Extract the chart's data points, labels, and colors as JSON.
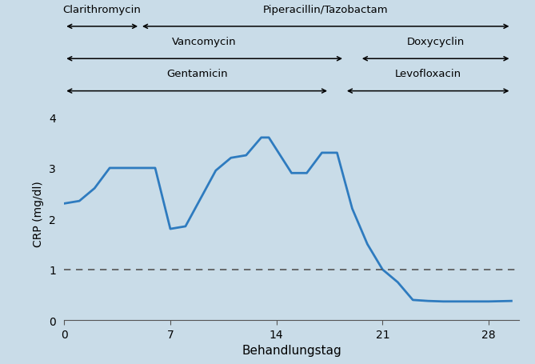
{
  "background_color": "#c9dce8",
  "line_color": "#2e7bbf",
  "line_width": 2.0,
  "x": [
    0,
    1,
    2,
    3,
    5,
    6,
    7,
    8,
    10,
    11,
    12,
    13,
    13.5,
    15,
    16,
    17,
    18,
    19,
    20,
    21,
    22,
    23,
    24,
    25,
    26,
    27,
    28,
    29.5
  ],
  "y": [
    2.3,
    2.35,
    2.6,
    3.0,
    3.0,
    3.0,
    1.8,
    1.85,
    2.95,
    3.2,
    3.25,
    3.6,
    3.6,
    2.9,
    2.9,
    3.3,
    3.3,
    2.2,
    1.5,
    1.0,
    0.75,
    0.4,
    0.38,
    0.37,
    0.37,
    0.37,
    0.37,
    0.38
  ],
  "xlim": [
    0,
    30
  ],
  "ylim": [
    0,
    4.2
  ],
  "xticks": [
    0,
    7,
    14,
    21,
    28
  ],
  "yticks": [
    0,
    1,
    2,
    3,
    4
  ],
  "xlabel": "Behandlungstag",
  "ylabel": "CRP (mg/dl)",
  "dashed_line_y": 1.0,
  "dashed_color": "#555555",
  "antibiotics": [
    {
      "name": "Clarithromycin",
      "x_start": 0.0,
      "x_end": 5.0,
      "row": 0
    },
    {
      "name": "Piperacillin/Tazobactam",
      "x_start": 5.0,
      "x_end": 29.5,
      "row": 0
    },
    {
      "name": "Vancomycin",
      "x_start": 0.0,
      "x_end": 18.5,
      "row": 1
    },
    {
      "name": "Doxycyclin",
      "x_start": 19.5,
      "x_end": 29.5,
      "row": 1
    },
    {
      "name": "Gentamicin",
      "x_start": 0.0,
      "x_end": 17.5,
      "row": 2
    },
    {
      "name": "Levofloxacin",
      "x_start": 18.5,
      "x_end": 29.5,
      "row": 2
    }
  ],
  "antibiotic_fontsize": 9.5,
  "xlabel_fontsize": 11,
  "ylabel_fontsize": 10,
  "tick_fontsize": 10
}
